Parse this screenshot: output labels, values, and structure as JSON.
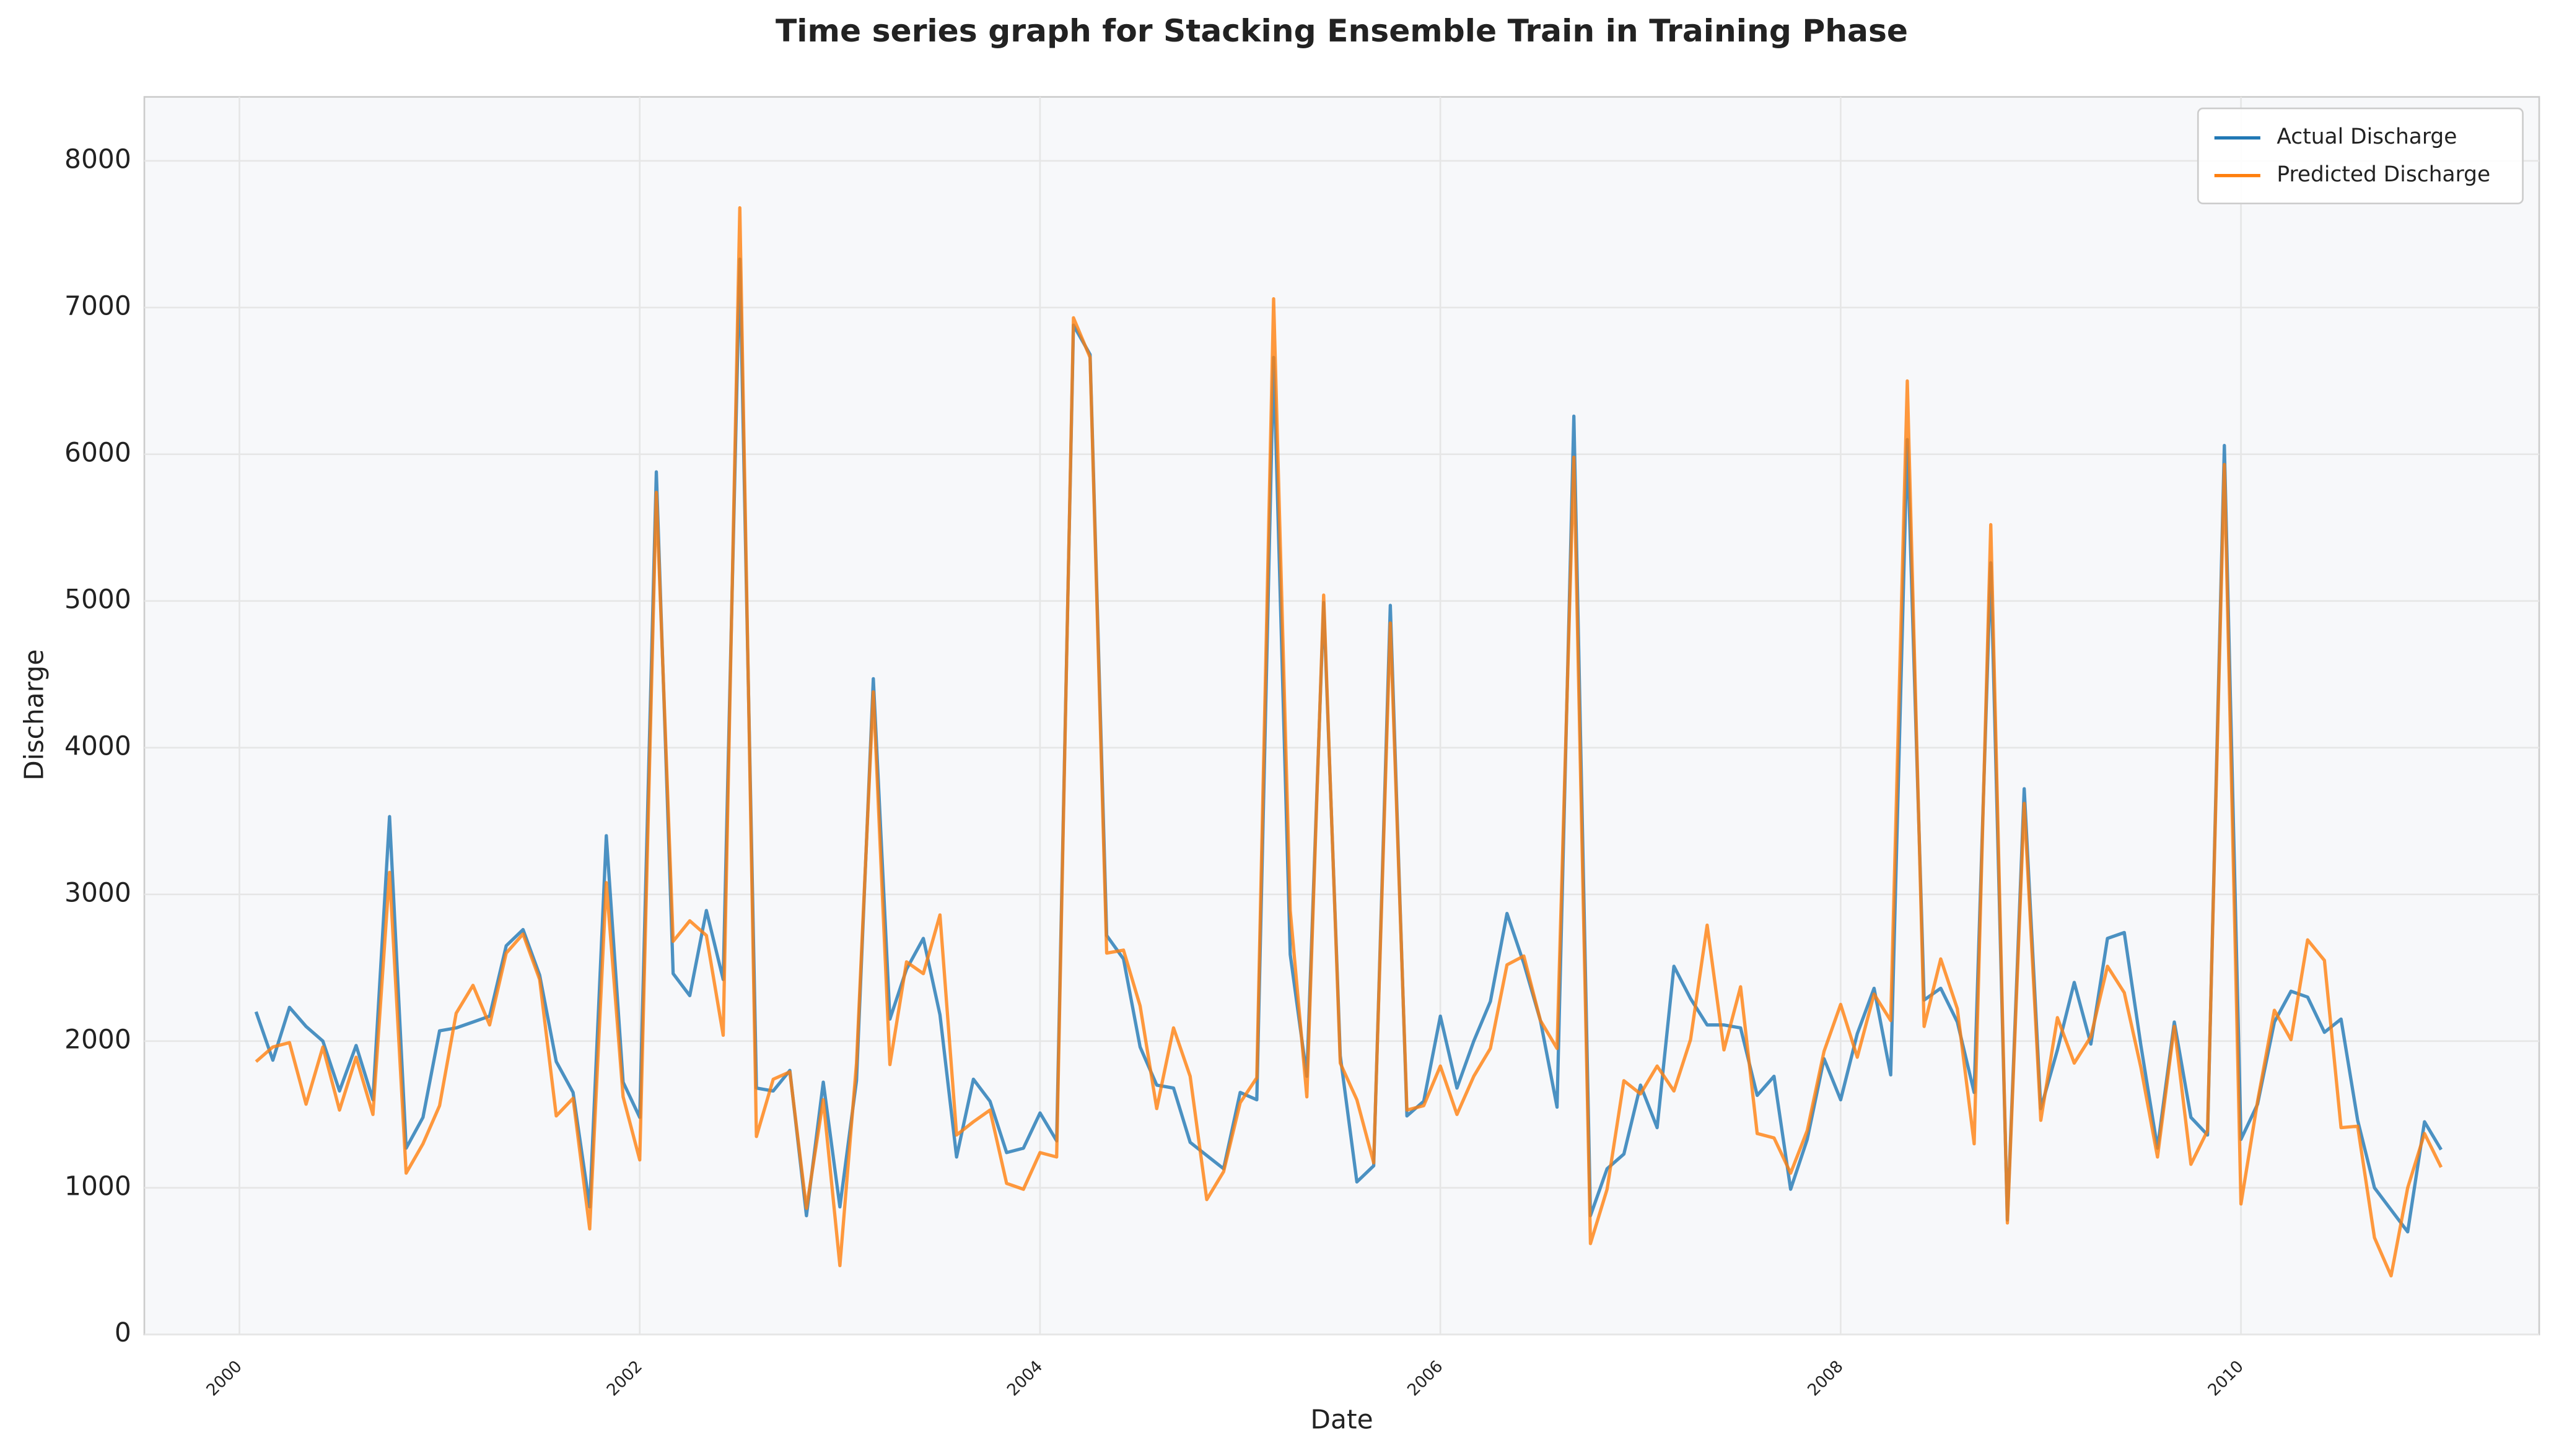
{
  "chart_data": {
    "type": "line",
    "title": "Time series graph for Stacking Ensemble Train in Training Phase",
    "x_label": "Date",
    "y_label": "Discharge",
    "x": [
      2000.083,
      2000.167,
      2000.25,
      2000.333,
      2000.417,
      2000.5,
      2000.583,
      2000.667,
      2000.75,
      2000.833,
      2000.917,
      2001,
      2001.083,
      2001.167,
      2001.25,
      2001.333,
      2001.417,
      2001.5,
      2001.583,
      2001.667,
      2001.75,
      2001.833,
      2001.917,
      2002,
      2002.083,
      2002.167,
      2002.25,
      2002.333,
      2002.417,
      2002.5,
      2002.583,
      2002.667,
      2002.75,
      2002.833,
      2002.917,
      2003,
      2003.083,
      2003.167,
      2003.25,
      2003.333,
      2003.417,
      2003.5,
      2003.583,
      2003.667,
      2003.75,
      2003.833,
      2003.917,
      2004,
      2004.083,
      2004.167,
      2004.25,
      2004.333,
      2004.417,
      2004.5,
      2004.583,
      2004.667,
      2004.75,
      2004.833,
      2004.917,
      2005,
      2005.083,
      2005.167,
      2005.25,
      2005.333,
      2005.417,
      2005.5,
      2005.583,
      2005.667,
      2005.75,
      2005.833,
      2005.917,
      2006,
      2006.083,
      2006.167,
      2006.25,
      2006.333,
      2006.417,
      2006.5,
      2006.583,
      2006.667,
      2006.75,
      2006.833,
      2006.917,
      2007,
      2007.083,
      2007.167,
      2007.25,
      2007.333,
      2007.417,
      2007.5,
      2007.583,
      2007.667,
      2007.75,
      2007.833,
      2007.917,
      2008,
      2008.083,
      2008.167,
      2008.25,
      2008.333,
      2008.417,
      2008.5,
      2008.583,
      2008.667,
      2008.75,
      2008.833,
      2008.917,
      2009,
      2009.083,
      2009.167,
      2009.25,
      2009.333,
      2009.417,
      2009.5,
      2009.583,
      2009.667,
      2009.75,
      2009.833,
      2009.917,
      2010,
      2010.083,
      2010.167,
      2010.25,
      2010.333,
      2010.417,
      2010.5,
      2010.583,
      2010.667,
      2010.75,
      2010.833,
      2010.917,
      2011
    ],
    "series": [
      {
        "name": "Actual Discharge",
        "color": "#1f77b4",
        "values": [
          2200,
          1870,
          2230,
          2100,
          2000,
          1660,
          1970,
          1600,
          3530,
          1270,
          1480,
          2070,
          2090,
          2130,
          2170,
          2650,
          2760,
          2450,
          1860,
          1650,
          870,
          3400,
          1720,
          1480,
          5880,
          2460,
          2310,
          2890,
          2420,
          7330,
          1680,
          1660,
          1800,
          810,
          1720,
          870,
          1730,
          4470,
          2150,
          2490,
          2700,
          2180,
          1210,
          1740,
          1590,
          1240,
          1270,
          1510,
          1320,
          6880,
          6680,
          2720,
          2560,
          1960,
          1700,
          1680,
          1310,
          1220,
          1130,
          1650,
          1600,
          6660,
          2590,
          1760,
          4990,
          1900,
          1040,
          1150,
          4970,
          1490,
          1590,
          2170,
          1680,
          2000,
          2270,
          2870,
          2530,
          2140,
          1550,
          6260,
          810,
          1130,
          1230,
          1700,
          1410,
          2510,
          2290,
          2110,
          2110,
          2090,
          1630,
          1760,
          990,
          1330,
          1880,
          1600,
          2050,
          2360,
          1770,
          6100,
          2280,
          2360,
          2130,
          1650,
          5260,
          780,
          3720,
          1540,
          1940,
          2400,
          1980,
          2700,
          2740,
          1970,
          1270,
          2130,
          1480,
          1360,
          6060,
          1330,
          1570,
          2130,
          2340,
          2300,
          2060,
          2150,
          1460,
          1000,
          850,
          700,
          1450,
          1260
        ]
      },
      {
        "name": "Predicted Discharge",
        "color": "#ff7f0e",
        "values": [
          1860,
          1960,
          1990,
          1570,
          1960,
          1530,
          1890,
          1500,
          3150,
          1100,
          1300,
          1560,
          2190,
          2380,
          2110,
          2600,
          2730,
          2420,
          1490,
          1610,
          720,
          3080,
          1620,
          1190,
          5740,
          2680,
          2820,
          2720,
          2040,
          7680,
          1350,
          1740,
          1790,
          860,
          1600,
          470,
          1850,
          4380,
          1840,
          2540,
          2460,
          2860,
          1360,
          1450,
          1530,
          1030,
          990,
          1240,
          1210,
          6930,
          6660,
          2600,
          2620,
          2240,
          1540,
          2090,
          1760,
          920,
          1110,
          1580,
          1750,
          7060,
          2890,
          1620,
          5040,
          1850,
          1600,
          1170,
          4850,
          1530,
          1560,
          1830,
          1500,
          1760,
          1950,
          2520,
          2580,
          2140,
          1950,
          5980,
          620,
          990,
          1730,
          1640,
          1830,
          1660,
          2010,
          2790,
          1940,
          2370,
          1370,
          1340,
          1100,
          1390,
          1930,
          2250,
          1890,
          2320,
          2140,
          6500,
          2100,
          2560,
          2220,
          1300,
          5520,
          760,
          3620,
          1460,
          2160,
          1850,
          2030,
          2510,
          2330,
          1820,
          1210,
          2100,
          1160,
          1390,
          5930,
          890,
          1590,
          2210,
          2010,
          2690,
          2550,
          1410,
          1420,
          660,
          400,
          1000,
          1370,
          1140
        ]
      }
    ],
    "xlim": [
      1999.525,
      2011.49
    ],
    "xticks": [
      2000,
      2002,
      2004,
      2006,
      2008,
      2010
    ],
    "ylim": [
      0,
      8436
    ],
    "yticks": [
      0,
      1000,
      2000,
      3000,
      4000,
      5000,
      6000,
      7000,
      8000
    ],
    "grid": true,
    "legend": "upper right"
  }
}
